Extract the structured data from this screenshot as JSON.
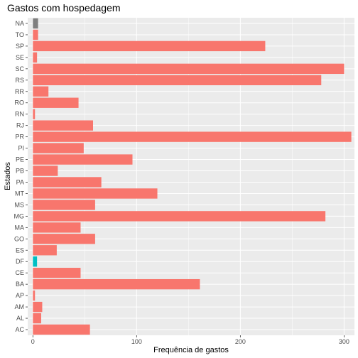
{
  "chart_data": {
    "type": "bar",
    "orientation": "horizontal",
    "title": "Gastos com hospedagem",
    "xlabel": "Frequência de gastos",
    "ylabel": "Estados",
    "xlim": [
      -5,
      310
    ],
    "xticks": [
      0,
      100,
      200,
      300
    ],
    "grid": true,
    "legend": "none",
    "colors": {
      "default": "#F8766D",
      "NA": "#7F7F7F",
      "DF": "#00BFC4"
    },
    "categories": [
      "AC",
      "AL",
      "AM",
      "AP",
      "BA",
      "CE",
      "DF",
      "ES",
      "GO",
      "MA",
      "MG",
      "MS",
      "MT",
      "PA",
      "PB",
      "PE",
      "PI",
      "PR",
      "RJ",
      "RN",
      "RO",
      "RR",
      "RS",
      "SC",
      "SE",
      "SP",
      "TO",
      "NA"
    ],
    "values": [
      55,
      8,
      9,
      2,
      161,
      46,
      4,
      23,
      60,
      46,
      282,
      60,
      120,
      66,
      24,
      96,
      49,
      307,
      58,
      2,
      44,
      15,
      278,
      300,
      4,
      224,
      5,
      5
    ]
  }
}
